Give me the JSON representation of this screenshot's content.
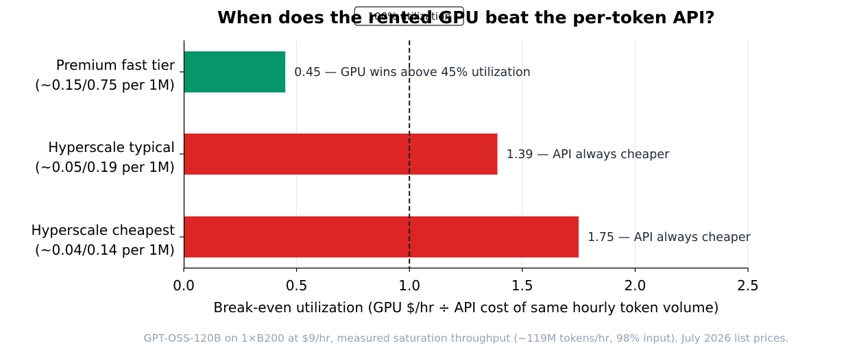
{
  "chart_data": {
    "type": "bar",
    "orientation": "horizontal",
    "title": "When does the rented GPU beat the per-token API?",
    "xlabel": "Break-even utilization  (GPU $/hr ÷ API cost of same hourly token volume)",
    "ylabel": "",
    "xlim": [
      0,
      2.5
    ],
    "xticks": [
      "0.0",
      "0.5",
      "1.0",
      "1.5",
      "2.0",
      "2.5"
    ],
    "xtick_values": [
      0,
      0.5,
      1.0,
      1.5,
      2.0,
      2.5
    ],
    "grid": "vertical",
    "bars": [
      {
        "category_line1": "Premium fast tier",
        "category_line2": "(~0.15/0.75 per 1M)",
        "value": 0.45,
        "annotation": "0.45  — GPU wins above 45% utilization",
        "color": "#059669"
      },
      {
        "category_line1": "Hyperscale typical",
        "category_line2": "(~0.05/0.19 per 1M)",
        "value": 1.39,
        "annotation": "1.39  — API always cheaper",
        "color": "#dc2626"
      },
      {
        "category_line1": "Hyperscale cheapest",
        "category_line2": "(~0.04/0.14 per 1M)",
        "value": 1.75,
        "annotation": "1.75  — API always cheaper",
        "color": "#dc2626"
      }
    ],
    "reference_line": {
      "value": 1.0,
      "label": "100% utilization",
      "style": "dashed"
    },
    "footnote": "GPT-OSS-120B on 1×B200 at $9/hr, measured saturation throughput (~119M tokens/hr, 98% input). July 2026 list prices."
  }
}
